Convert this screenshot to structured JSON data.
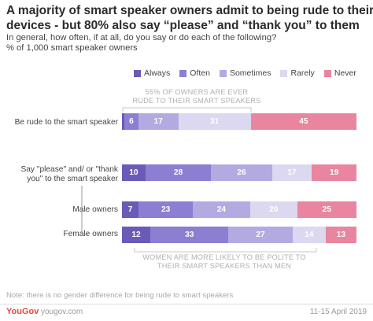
{
  "title": {
    "line1": "A majority of smart speaker owners admit to being rude to their",
    "line2": "devices - but 80% also say “please” and “thank you” to them"
  },
  "subtitle": {
    "line1": "In general, how often, if at all, do you say or do each of the following?",
    "line2": "% of 1,000 smart speaker owners"
  },
  "annotations": {
    "top_line1": "55% OF OWNERS ARE EVER",
    "top_line2": "RUDE TO THEIR SMART SPEAKERS",
    "bottom_line1": "WOMEN ARE MORE LIKELY TO BE POLITE TO",
    "bottom_line2": "THEIR SMART SPEAKERS THAN MEN"
  },
  "row_labels": {
    "rude": "Be rude to the smart speaker",
    "please_line1": "Say \"please\" and/ or \"thank",
    "please_line2": "you\" to the smart speaker",
    "male": "Male owners",
    "female": "Female owners"
  },
  "colors": {
    "Always": "#6b5ab8",
    "Often": "#8c7ed2",
    "Sometimes": "#b4aae2",
    "Rarely": "#dcd8f0",
    "Never": "#e9859f"
  },
  "chart_data": {
    "type": "bar",
    "orientation": "horizontal",
    "stacked": true,
    "xlim": [
      0,
      100
    ],
    "categories": [
      "Be rude to the smart speaker",
      "Say \"please\" and/ or \"thank you\" to the smart speaker",
      "Male owners",
      "Female owners"
    ],
    "series": [
      {
        "name": "Always",
        "values": [
          1,
          10,
          7,
          12
        ]
      },
      {
        "name": "Often",
        "values": [
          6,
          28,
          23,
          33
        ]
      },
      {
        "name": "Sometimes",
        "values": [
          17,
          26,
          24,
          27
        ]
      },
      {
        "name": "Rarely",
        "values": [
          31,
          17,
          20,
          14
        ]
      },
      {
        "name": "Never",
        "values": [
          45,
          19,
          25,
          13
        ]
      }
    ],
    "legend_position": "top"
  },
  "footer": {
    "note": "Note: there is no gender difference for being rude to smart speakers",
    "logo": "YouGov",
    "url": "yougov.com",
    "date": "11-15 April 2019"
  }
}
